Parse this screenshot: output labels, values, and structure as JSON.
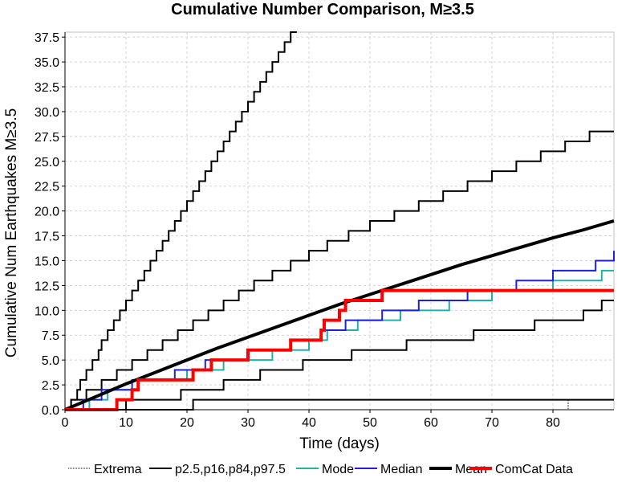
{
  "chart_data": {
    "type": "line",
    "title": "Cumulative Number Comparison, M≥3.5",
    "xlabel": "Time (days)",
    "ylabel": "Cumulative Num Earthquakes M≥3.5",
    "xlim": [
      0,
      90
    ],
    "ylim": [
      0,
      38
    ],
    "xticks": [
      0,
      10,
      20,
      30,
      40,
      50,
      60,
      70,
      80
    ],
    "yticks": [
      0.0,
      2.5,
      5.0,
      7.5,
      10.0,
      12.5,
      15.0,
      17.5,
      20.0,
      22.5,
      25.0,
      27.5,
      30.0,
      32.5,
      35.0,
      37.5
    ],
    "grid": true,
    "legend_position": "bottom",
    "legend": [
      "Extrema",
      "p2.5,p16,p84,p97.5",
      "Mode",
      "Median",
      "Mean",
      "ComCat Data"
    ],
    "series": [
      {
        "name": "Extrema",
        "color": "#000000",
        "style": "dotted",
        "steps": [
          [
            0,
            0
          ],
          [
            82.5,
            1
          ],
          [
            90,
            1
          ]
        ]
      },
      {
        "name": "p2.5",
        "color": "#000000",
        "style": "step",
        "steps": [
          [
            0,
            0
          ],
          [
            21,
            1
          ],
          [
            90,
            1
          ]
        ]
      },
      {
        "name": "p16",
        "color": "#000000",
        "style": "step",
        "steps": [
          [
            0,
            0
          ],
          [
            10,
            1
          ],
          [
            19,
            2
          ],
          [
            26,
            3
          ],
          [
            32,
            4
          ],
          [
            39,
            5
          ],
          [
            47,
            6
          ],
          [
            56,
            7
          ],
          [
            67,
            8
          ],
          [
            77,
            9
          ],
          [
            85,
            10
          ],
          [
            88,
            11
          ],
          [
            90,
            11
          ]
        ]
      },
      {
        "name": "p84",
        "color": "#000000",
        "style": "step",
        "steps": [
          [
            0,
            0
          ],
          [
            1,
            1
          ],
          [
            3.5,
            2
          ],
          [
            6,
            3
          ],
          [
            8.5,
            4
          ],
          [
            11,
            5
          ],
          [
            13.5,
            6
          ],
          [
            16,
            7
          ],
          [
            18.5,
            8
          ],
          [
            21,
            9
          ],
          [
            23.5,
            10
          ],
          [
            26,
            11
          ],
          [
            28.5,
            12
          ],
          [
            31,
            13
          ],
          [
            34,
            14
          ],
          [
            37,
            15
          ],
          [
            40,
            16
          ],
          [
            43,
            17
          ],
          [
            46.5,
            18
          ],
          [
            50,
            19
          ],
          [
            54,
            20
          ],
          [
            58,
            21
          ],
          [
            62,
            22
          ],
          [
            66,
            23
          ],
          [
            70,
            24
          ],
          [
            74,
            25
          ],
          [
            78,
            26
          ],
          [
            82,
            27
          ],
          [
            86,
            28
          ],
          [
            90,
            28
          ]
        ]
      },
      {
        "name": "p97.5",
        "color": "#000000",
        "style": "step",
        "steps": [
          [
            0,
            0
          ],
          [
            1,
            1
          ],
          [
            2,
            2
          ],
          [
            2.5,
            3
          ],
          [
            3.5,
            4
          ],
          [
            4.5,
            5
          ],
          [
            5.5,
            6
          ],
          [
            6,
            7
          ],
          [
            7,
            8
          ],
          [
            8,
            9
          ],
          [
            9,
            10
          ],
          [
            10,
            11
          ],
          [
            11,
            12
          ],
          [
            12,
            13
          ],
          [
            13,
            14
          ],
          [
            14,
            15
          ],
          [
            15,
            16
          ],
          [
            16,
            17
          ],
          [
            17,
            18
          ],
          [
            18,
            19
          ],
          [
            19,
            20
          ],
          [
            20,
            21
          ],
          [
            21,
            22
          ],
          [
            22,
            23
          ],
          [
            23,
            24
          ],
          [
            24,
            25
          ],
          [
            25,
            26
          ],
          [
            26,
            27
          ],
          [
            27,
            28
          ],
          [
            28,
            29
          ],
          [
            29,
            30
          ],
          [
            30,
            31
          ],
          [
            31,
            32
          ],
          [
            32,
            33
          ],
          [
            33,
            34
          ],
          [
            34,
            35
          ],
          [
            35,
            36
          ],
          [
            36,
            37
          ],
          [
            37,
            38
          ],
          [
            38,
            38
          ]
        ]
      },
      {
        "name": "Mode",
        "color": "#20b2aa",
        "style": "step",
        "steps": [
          [
            0,
            0
          ],
          [
            4,
            1
          ],
          [
            7,
            2
          ],
          [
            12,
            3
          ],
          [
            20,
            4
          ],
          [
            26,
            5
          ],
          [
            34,
            6
          ],
          [
            40,
            7
          ],
          [
            43,
            8
          ],
          [
            48,
            9
          ],
          [
            55,
            10
          ],
          [
            63,
            11
          ],
          [
            70,
            12
          ],
          [
            80,
            13
          ],
          [
            88,
            14
          ],
          [
            90,
            14
          ]
        ]
      },
      {
        "name": "Median",
        "color": "#1f1fdd",
        "style": "step",
        "steps": [
          [
            0,
            0
          ],
          [
            3,
            1
          ],
          [
            6,
            2
          ],
          [
            11,
            3
          ],
          [
            18,
            4
          ],
          [
            23,
            5
          ],
          [
            30,
            6
          ],
          [
            37,
            7
          ],
          [
            42,
            8
          ],
          [
            46,
            9
          ],
          [
            52,
            10
          ],
          [
            58,
            11
          ],
          [
            66,
            12
          ],
          [
            74,
            13
          ],
          [
            80,
            14
          ],
          [
            87,
            15
          ],
          [
            90,
            16
          ]
        ]
      },
      {
        "name": "Mean",
        "color": "#000000",
        "style": "line",
        "x": [
          0,
          5,
          10,
          15,
          20,
          25,
          30,
          35,
          40,
          45,
          50,
          55,
          60,
          65,
          70,
          75,
          80,
          85,
          90
        ],
        "y": [
          0,
          1.3,
          2.6,
          3.8,
          5.0,
          6.2,
          7.3,
          8.4,
          9.5,
          10.6,
          11.6,
          12.6,
          13.6,
          14.6,
          15.5,
          16.4,
          17.3,
          18.1,
          19.0
        ]
      },
      {
        "name": "ComCat Data",
        "color": "#ff0000",
        "style": "step",
        "steps": [
          [
            0,
            0
          ],
          [
            8.5,
            1
          ],
          [
            11,
            2
          ],
          [
            12,
            3
          ],
          [
            21,
            4
          ],
          [
            24,
            5
          ],
          [
            30,
            6
          ],
          [
            37,
            7
          ],
          [
            42,
            8
          ],
          [
            42.5,
            9
          ],
          [
            45,
            10
          ],
          [
            46,
            11
          ],
          [
            52,
            12
          ],
          [
            90,
            12
          ]
        ]
      }
    ]
  }
}
